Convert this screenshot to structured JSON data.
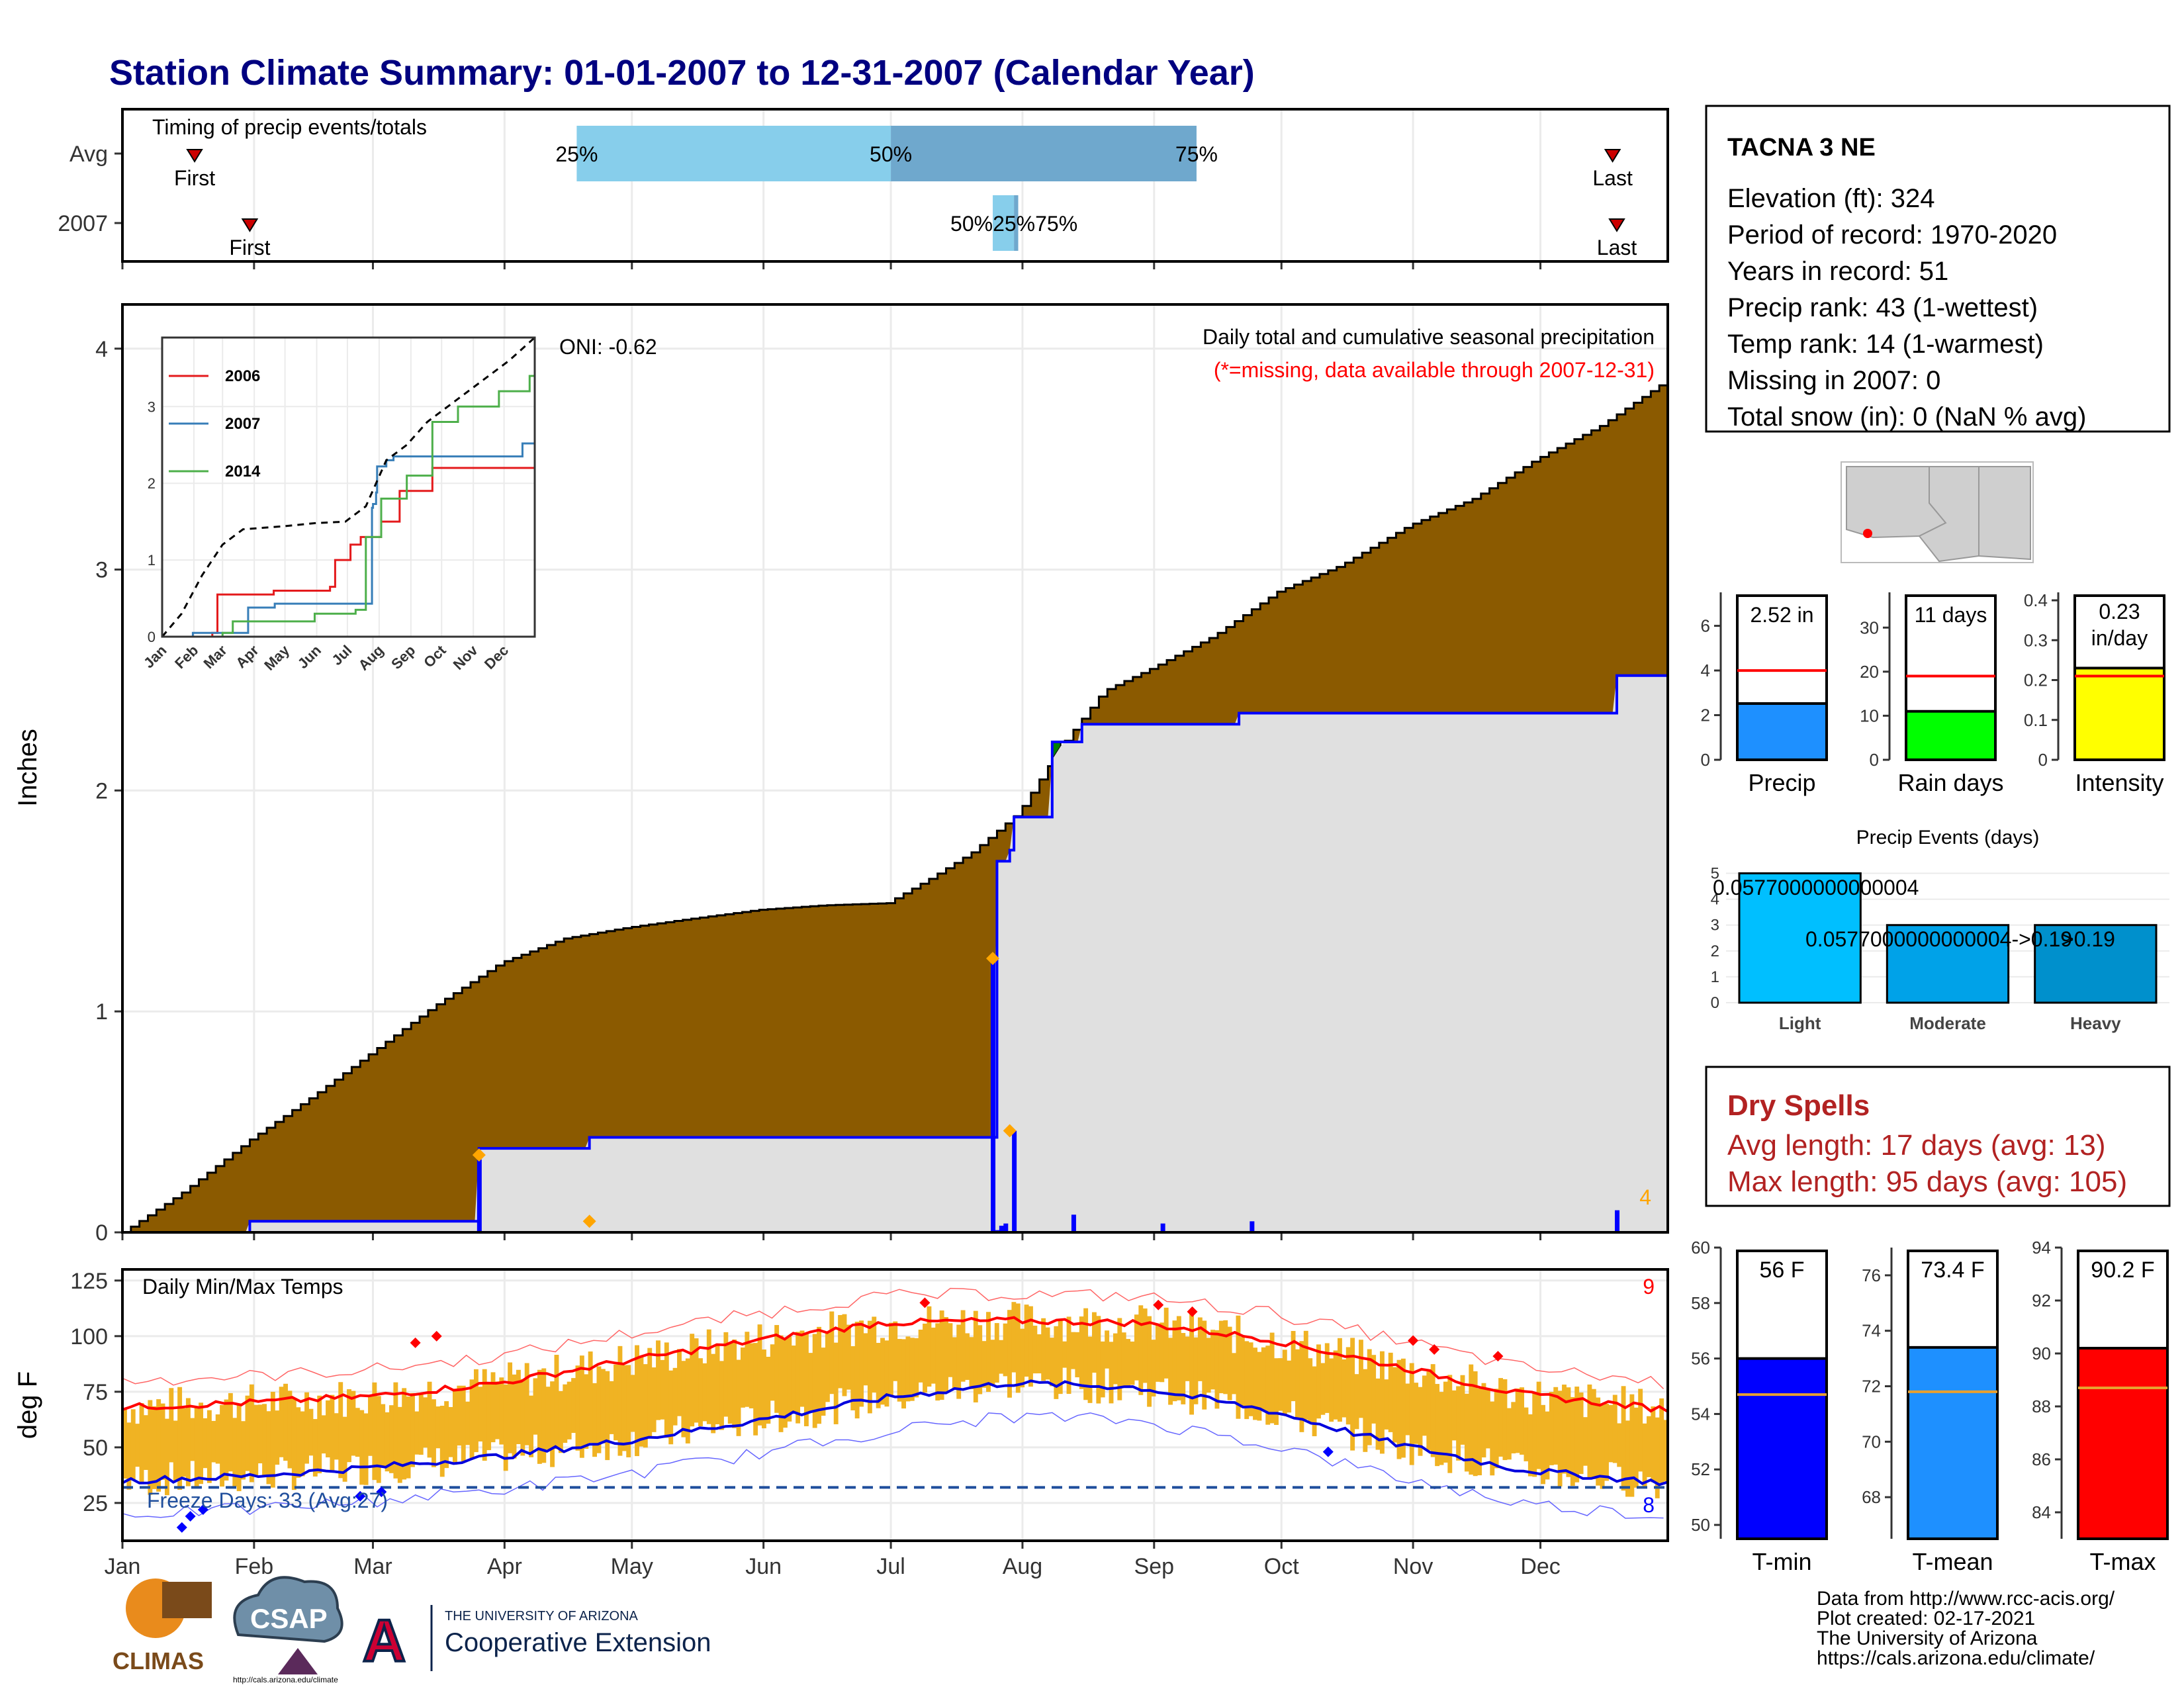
{
  "page": {
    "title": "Station Climate Summary: 01-01-2007 to 12-31-2007 (Calendar Year)"
  },
  "station": {
    "name": "TACNA 3 NE",
    "lines": [
      "Elevation (ft): 324",
      "Period of record: 1970-2020",
      "Years in record: 51",
      "Precip rank: 43 (1-wettest)",
      "Temp rank: 14 (1-warmest)",
      "Missing in 2007: 0",
      "Total snow (in): 0 (NaN % avg)"
    ]
  },
  "dry_spells": {
    "title": "Dry Spells",
    "avg": "Avg length: 17 days (avg: 13)",
    "max": "Max length: 95 days (avg: 105)"
  },
  "credits": {
    "lines": [
      "Data from http://www.rcc-acis.org/",
      "Plot created: 02-17-2021",
      "The University of Arizona",
      "https://cals.arizona.edu/climate/"
    ],
    "logo_climas": "CLIMAS",
    "logo_csap": "CSAP",
    "logo_csap_url": "http://cals.arizona.edu/climate",
    "logo_ua_top": "THE UNIVERSITY OF ARIZONA",
    "logo_ua_bottom": "Cooperative Extension",
    "logo_ua_letter": "A"
  },
  "colors": {
    "title": "#000080",
    "avg_precip_fill": "#8b5a00",
    "year_precip_fill": "#e0e0e0",
    "above_avg_fill": "#008000",
    "year_line": "#0000ff",
    "temp_bar": "#f0b323",
    "tmax_line": "#ff0000",
    "tmin_line": "#0000dd",
    "timing_light": "#87ceeb",
    "timing_dark": "#6fa8cd",
    "dry_spell_text": "#b22222"
  },
  "chart_data": [
    {
      "id": "timing",
      "type": "bar",
      "title": "Timing of precip events/totals",
      "categories": [
        "Avg",
        "2007"
      ],
      "x_ticks": [
        "Jan",
        "Feb",
        "Mar",
        "Apr",
        "May",
        "Jun",
        "Jul",
        "Aug",
        "Sep",
        "Oct",
        "Nov",
        "Dec"
      ],
      "rows": [
        {
          "name": "Avg",
          "first": "2007-01-18",
          "p25": "2007-04-18",
          "p50": "2007-07-01",
          "p75": "2007-09-11",
          "last": "2007-12-18",
          "first_label": "First",
          "last_label": "Last",
          "p25_label": "25%",
          "p50_label": "50%",
          "p75_label": "75%"
        },
        {
          "name": "2007",
          "first": "2007-01-31",
          "p25": "2007-07-25",
          "p50": "2007-07-30",
          "p75": "2007-07-31",
          "last": "2007-12-19",
          "first_label": "First",
          "last_label": "Last",
          "overlap_label": "50%25%75%"
        }
      ]
    },
    {
      "id": "precip",
      "type": "area",
      "title": "Daily total and cumulative seasonal precipitation",
      "subtitle": "(*=missing, data available through 2007-12-31)",
      "ylabel": "Inches",
      "ylim": [
        0,
        4.2
      ],
      "y_ticks": [
        0,
        1,
        2,
        3,
        4
      ],
      "oni": "ONI: -0.62",
      "corner_count": "4",
      "avg_cumulative": {
        "x": [
          "2007-01-01",
          "2007-01-15",
          "2007-01-31",
          "2007-02-15",
          "2007-03-01",
          "2007-03-15",
          "2007-03-31",
          "2007-04-15",
          "2007-04-30",
          "2007-05-15",
          "2007-05-31",
          "2007-06-15",
          "2007-06-30",
          "2007-07-10",
          "2007-07-20",
          "2007-07-31",
          "2007-08-10",
          "2007-08-20",
          "2007-08-31",
          "2007-09-15",
          "2007-09-30",
          "2007-10-15",
          "2007-10-31",
          "2007-11-15",
          "2007-11-30",
          "2007-12-15",
          "2007-12-31"
        ],
        "y": [
          0.0,
          0.18,
          0.42,
          0.62,
          0.82,
          1.02,
          1.22,
          1.33,
          1.38,
          1.42,
          1.46,
          1.48,
          1.49,
          1.6,
          1.72,
          1.9,
          2.2,
          2.45,
          2.55,
          2.7,
          2.9,
          3.02,
          3.2,
          3.32,
          3.5,
          3.65,
          3.86
        ]
      },
      "year_cumulative": {
        "x": [
          "2007-01-01",
          "2007-01-31",
          "2007-03-25",
          "2007-03-26",
          "2007-04-21",
          "2007-07-25",
          "2007-07-26",
          "2007-07-29",
          "2007-07-30",
          "2007-08-08",
          "2007-08-15",
          "2007-09-21",
          "2007-12-19",
          "2007-12-31"
        ],
        "y": [
          0.0,
          0.05,
          0.05,
          0.38,
          0.43,
          0.43,
          1.68,
          1.73,
          1.88,
          2.22,
          2.3,
          2.35,
          2.52,
          2.52
        ]
      },
      "daily_precip": {
        "x": [
          "2007-03-26",
          "2007-07-25",
          "2007-07-26",
          "2007-07-27",
          "2007-07-28",
          "2007-07-30",
          "2007-08-13",
          "2007-09-03",
          "2007-09-24",
          "2007-12-19"
        ],
        "y": [
          0.33,
          1.24,
          0.01,
          0.03,
          0.04,
          0.46,
          0.08,
          0.04,
          0.05,
          0.1
        ]
      }
    },
    {
      "id": "precip_inset",
      "type": "line",
      "x_ticks": [
        "Jan",
        "Feb",
        "Mar",
        "Apr",
        "May",
        "Jun",
        "Jul",
        "Aug",
        "Sep",
        "Oct",
        "Nov",
        "Dec"
      ],
      "y_ticks": [
        0,
        1,
        2,
        3
      ],
      "ylim": [
        0,
        3.9
      ],
      "series": [
        {
          "name": "2006",
          "color": "#e41a1c",
          "x": [
            1,
            50,
            55,
            110,
            165,
            170,
            185,
            195,
            215,
            233,
            265,
            365
          ],
          "y": [
            0,
            0.05,
            0.55,
            0.6,
            0.65,
            1.0,
            1.2,
            1.3,
            1.5,
            1.9,
            2.2,
            2.2
          ]
        },
        {
          "name": "2007",
          "color": "#377eb8",
          "x": [
            1,
            31,
            85,
            111,
            206,
            207,
            210,
            211,
            220,
            227,
            264,
            353,
            365
          ],
          "y": [
            0,
            0.05,
            0.38,
            0.43,
            1.68,
            1.73,
            1.88,
            2.22,
            2.3,
            2.35,
            2.35,
            2.52,
            2.52
          ]
        },
        {
          "name": "2014",
          "color": "#4daf4a",
          "x": [
            1,
            60,
            70,
            150,
            190,
            200,
            215,
            240,
            265,
            290,
            330,
            360,
            365
          ],
          "y": [
            0,
            0.05,
            0.2,
            0.3,
            0.35,
            1.3,
            1.8,
            2.1,
            2.8,
            3.0,
            3.2,
            3.4,
            3.4
          ]
        },
        {
          "name": "",
          "color": "#000000",
          "dashed": true,
          "x": [
            1,
            20,
            40,
            60,
            80,
            100,
            120,
            150,
            180,
            200,
            220,
            240,
            260,
            280,
            300,
            320,
            340,
            365
          ],
          "y": [
            0,
            0.3,
            0.8,
            1.2,
            1.4,
            1.42,
            1.44,
            1.48,
            1.5,
            1.7,
            2.3,
            2.5,
            2.8,
            3.0,
            3.2,
            3.4,
            3.6,
            3.9
          ]
        }
      ]
    },
    {
      "id": "temps",
      "type": "line",
      "title": "Daily Min/Max Temps",
      "ylabel": "deg F",
      "ylim": [
        8,
        130
      ],
      "y_ticks": [
        25,
        50,
        75,
        100,
        125
      ],
      "x_ticks": [
        "Jan",
        "Feb",
        "Mar",
        "Apr",
        "May",
        "Jun",
        "Jul",
        "Aug",
        "Sep",
        "Oct",
        "Nov",
        "Dec"
      ],
      "freeze_label": "Freeze Days: 33 (Avg:27)",
      "freeze_line": 32,
      "count_hot": "9",
      "count_cold": "8",
      "avg_max": {
        "x": [
          1,
          30,
          60,
          90,
          120,
          150,
          180,
          210,
          240,
          270,
          300,
          330,
          365
        ],
        "y": [
          68,
          70,
          73,
          79,
          89,
          98,
          106,
          107,
          106,
          99,
          87,
          74,
          67
        ]
      },
      "avg_min": {
        "x": [
          1,
          30,
          60,
          90,
          120,
          150,
          180,
          210,
          240,
          270,
          300,
          330,
          365
        ],
        "y": [
          35,
          37,
          41,
          46,
          53,
          62,
          72,
          79,
          77,
          67,
          52,
          40,
          34
        ]
      }
    },
    {
      "id": "totals",
      "type": "bar",
      "panels": [
        {
          "category": "Precip",
          "value": 2.52,
          "label": "2.52 in",
          "avg": 4.0,
          "ylim": [
            0,
            7.5
          ],
          "ticks": [
            0,
            2,
            4,
            6
          ],
          "color": "#1e90ff"
        },
        {
          "category": "Rain days",
          "value": 11,
          "label": "11 days",
          "avg": 19,
          "ylim": [
            0,
            38
          ],
          "ticks": [
            0,
            10,
            20,
            30
          ],
          "color": "#00ff00"
        },
        {
          "category": "Intensity",
          "value": 0.23,
          "label": "0.23 in/day",
          "avg": 0.21,
          "ylim": [
            0,
            0.42
          ],
          "ticks": [
            0.0,
            0.1,
            0.2,
            0.3,
            0.4
          ],
          "color": "#ffff00"
        }
      ]
    },
    {
      "id": "events",
      "type": "bar",
      "title": "Precip Events (days)",
      "categories": [
        "Light",
        "Moderate",
        "Heavy"
      ],
      "values": [
        5,
        3,
        3
      ],
      "labels": [
        "0.0577000000000004",
        "0.0577000000000004->0.19",
        ">0.19"
      ],
      "ylim": [
        0,
        5.5
      ],
      "y_ticks": [
        0,
        1,
        2,
        3,
        4,
        5
      ]
    },
    {
      "id": "temp_avgs",
      "type": "bar",
      "panels": [
        {
          "category": "T-min",
          "value": 56.0,
          "label": "56 F",
          "avg": 54.7,
          "ylim": [
            49.5,
            60
          ],
          "ticks": [
            50,
            52,
            54,
            56,
            58,
            60
          ],
          "color": "#0000ff"
        },
        {
          "category": "T-mean",
          "value": 73.4,
          "label": "73.4 F",
          "avg": 71.8,
          "ylim": [
            66.5,
            77
          ],
          "ticks": [
            68,
            70,
            72,
            74,
            76
          ],
          "color": "#1e90ff"
        },
        {
          "category": "T-max",
          "value": 90.2,
          "label": "90.2 F",
          "avg": 88.7,
          "ylim": [
            83,
            94
          ],
          "ticks": [
            84,
            86,
            88,
            90,
            92,
            94
          ],
          "color": "#ff0000"
        }
      ]
    }
  ]
}
